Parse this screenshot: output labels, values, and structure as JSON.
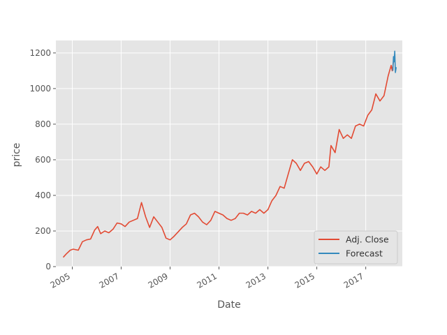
{
  "chart_data": {
    "type": "line",
    "title": "",
    "xlabel": "Date",
    "ylabel": "price",
    "xlim": [
      "2004-05-01",
      "2018-07-01"
    ],
    "ylim": [
      0,
      1270
    ],
    "grid": true,
    "legend_position": "lower-right",
    "x_ticks": [
      "2005",
      "2007",
      "2009",
      "2011",
      "2013",
      "2015",
      "2017"
    ],
    "y_ticks": [
      "0",
      "200",
      "400",
      "600",
      "800",
      "1000",
      "1200"
    ],
    "series": [
      {
        "name": "Adj. Close",
        "color": "#E24A33",
        "x": [
          "2004-08-19",
          "2004-10-01",
          "2004-12-01",
          "2005-01-15",
          "2005-04-01",
          "2005-06-01",
          "2005-08-01",
          "2005-10-01",
          "2005-12-01",
          "2006-01-15",
          "2006-03-01",
          "2006-05-01",
          "2006-07-01",
          "2006-09-01",
          "2006-11-01",
          "2007-01-01",
          "2007-03-01",
          "2007-05-01",
          "2007-07-01",
          "2007-09-01",
          "2007-11-01",
          "2008-01-01",
          "2008-03-01",
          "2008-05-01",
          "2008-07-01",
          "2008-09-01",
          "2008-11-01",
          "2009-01-01",
          "2009-03-01",
          "2009-05-01",
          "2009-07-01",
          "2009-09-01",
          "2009-11-01",
          "2010-01-01",
          "2010-03-01",
          "2010-05-01",
          "2010-07-01",
          "2010-09-01",
          "2010-11-01",
          "2011-01-01",
          "2011-03-01",
          "2011-05-01",
          "2011-07-01",
          "2011-09-01",
          "2011-11-01",
          "2012-01-01",
          "2012-03-01",
          "2012-05-01",
          "2012-07-01",
          "2012-09-01",
          "2012-11-01",
          "2013-01-01",
          "2013-03-01",
          "2013-05-01",
          "2013-07-01",
          "2013-09-01",
          "2013-11-01",
          "2014-01-01",
          "2014-03-01",
          "2014-05-01",
          "2014-07-01",
          "2014-09-01",
          "2014-11-01",
          "2015-01-01",
          "2015-03-01",
          "2015-05-01",
          "2015-07-01",
          "2015-08-01",
          "2015-10-01",
          "2015-12-01",
          "2016-02-01",
          "2016-04-01",
          "2016-06-01",
          "2016-08-01",
          "2016-10-01",
          "2016-12-01",
          "2017-02-01",
          "2017-04-01",
          "2017-06-01",
          "2017-08-01",
          "2017-10-01",
          "2017-12-01",
          "2018-01-15",
          "2018-02-01",
          "2018-03-01"
        ],
        "values": [
          52,
          70,
          92,
          98,
          92,
          140,
          150,
          155,
          205,
          225,
          185,
          200,
          190,
          210,
          245,
          240,
          225,
          250,
          260,
          270,
          360,
          280,
          220,
          280,
          250,
          220,
          160,
          150,
          170,
          195,
          220,
          240,
          290,
          300,
          280,
          250,
          235,
          260,
          310,
          300,
          290,
          270,
          260,
          270,
          300,
          300,
          290,
          310,
          300,
          320,
          300,
          320,
          370,
          400,
          450,
          440,
          520,
          600,
          580,
          540,
          580,
          590,
          560,
          520,
          560,
          540,
          560,
          680,
          640,
          770,
          720,
          740,
          720,
          790,
          800,
          790,
          850,
          880,
          970,
          930,
          960,
          1070,
          1130,
          1100,
          1180
        ]
      },
      {
        "name": "Forecast",
        "color": "#348ABD",
        "x": [
          "2018-02-10",
          "2018-02-20",
          "2018-03-01",
          "2018-03-10",
          "2018-03-20",
          "2018-04-01"
        ],
        "values": [
          1100,
          1180,
          1150,
          1210,
          1090,
          1120
        ]
      }
    ]
  }
}
